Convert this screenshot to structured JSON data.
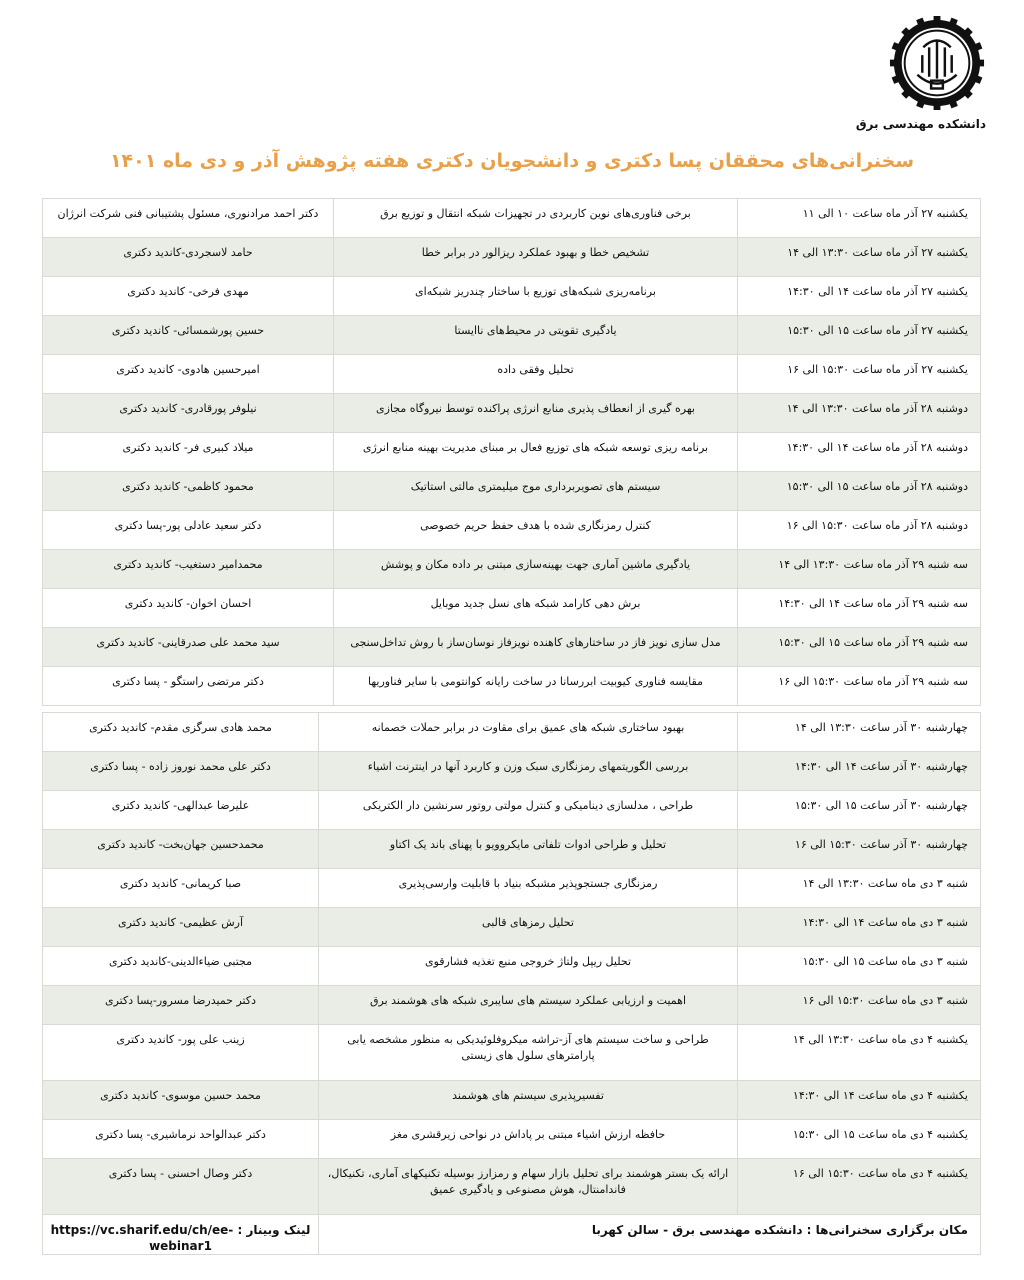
{
  "header": {
    "logo_icon": "sharif-university-gear-logo",
    "department": "دانشکده مهندسی برق",
    "title": "سخنرانی‌های محققان پسا دکتری و دانشجویان دکتری هفته پژوهش آذر و دی ماه ۱۴۰۱",
    "title_color": "#e8a04a"
  },
  "table1": [
    {
      "time": "یکشنبه ۲۷ آذر ماه ساعت ۱۰ الی ۱۱",
      "topic": "برخی فناوری‌های نوین کاربردی در تجهیزات شبکه انتقال و توزیع برق",
      "speaker": "دکتر احمد مرادنوری، مسئول پشتیبانی فنی شرکت انرژان"
    },
    {
      "time": "یکشنبه ۲۷ آذر ماه ساعت ۱۳:۳۰ الی ۱۴",
      "topic": "تشخیص خطا و بهبود عملکرد ریزالور در برابر خطا",
      "speaker": "حامد لاسجردی-کاندید دکتری"
    },
    {
      "time": "یکشنبه ۲۷ آذر ماه ساعت ۱۴ الی ۱۴:۳۰",
      "topic": "برنامه‌ریزی شبکه‌های توزیع با ساختار چندریز شبکه‌ای",
      "speaker": "مهدی فرخی- کاندید دکتری"
    },
    {
      "time": "یکشنبه ۲۷ آذر ماه ساعت ۱۵ الی ۱۵:۳۰",
      "topic": "یادگیری تقویتی در محیط‌های ناایستا",
      "speaker": "حسین پورشمسائی- کاندید دکتری"
    },
    {
      "time": "یکشنبه ۲۷ آذر ماه ساعت ۱۵:۳۰ الی ۱۶",
      "topic": "تحلیل وفقی داده",
      "speaker": "امیرحسین هادوی- کاندید دکتری"
    },
    {
      "time": "دوشنبه ۲۸ آذر ماه ساعت ۱۳:۳۰ الی ۱۴",
      "topic": "بهره گیری از انعطاف پذیری منابع انرژی پراکنده توسط نیروگاه مجازی",
      "speaker": "نیلوفر پورقادری- کاندید دکتری"
    },
    {
      "time": "دوشنبه ۲۸ آذر ماه ساعت ۱۴ الی ۱۴:۳۰",
      "topic": "برنامه ریزی توسعه شبکه های توزیع فعال بر مبنای مدیریت بهینه منابع انرژی",
      "speaker": "میلاد کبیری فر- کاندید دکتری"
    },
    {
      "time": "دوشنبه ۲۸ آذر ماه ساعت ۱۵ الی ۱۵:۳۰",
      "topic": "سیستم های تصویربرداری موج میلیمتری مالتی استاتیک",
      "speaker": "محمود کاظمی- کاندید دکتری"
    },
    {
      "time": "دوشنبه ۲۸ آذر ماه ساعت ۱۵:۳۰ الی ۱۶",
      "topic": "کنترل رمزنگاری شده با هدف حفظ حریم خصوصی",
      "speaker": "دکتر سعید عادلی پور-پسا دکتری"
    },
    {
      "time": "سه شنبه ۲۹ آذر ماه ساعت ۱۳:۳۰ الی ۱۴",
      "topic": "یادگیری ماشین آماری جهت بهینه‌سازی مبتنی بر داده مکان و پوشش",
      "speaker": "محمدامیر دستغیب- کاندید دکتری"
    },
    {
      "time": "سه شنبه ۲۹ آذر ماه ساعت ۱۴ الی ۱۴:۳۰",
      "topic": "برش دهی کارامد شبکه های نسل جدید موبایل",
      "speaker": "احسان اخوان- کاندید دکتری"
    },
    {
      "time": "سه شنبه ۲۹ آذر ماه ساعت ۱۵ الی ۱۵:۳۰",
      "topic": "مدل سازی نویز فاز در ساختارهای کاهنده نویزفاز نوسان‌ساز با روش تداخل‌سنجی",
      "speaker": "سید محمد علی صدرقاینی- کاندید دکتری"
    },
    {
      "time": "سه شنبه ۲۹ آذر ماه ساعت ۱۵:۳۰ الی ۱۶",
      "topic": "مقایسه فناوری کیوبیت ابررسانا در ساخت رایانه کوانتومی با سایر فناوریها",
      "speaker": "دکتر مرتضی راستگو - پسا دکتری"
    }
  ],
  "table2": [
    {
      "time": "چهارشنبه ۳۰ آذر ساعت ۱۳:۳۰ الی ۱۴",
      "topic": "بهبود ساختاری شبکه های عمیق برای مقاوت در برابر حملات خصمانه",
      "speaker": "محمد هادی سرگزی مقدم- کاندید دکتری"
    },
    {
      "time": "چهارشنبه ۳۰ آذر ساعت ۱۴ الی ۱۴:۳۰",
      "topic": "بررسی الگوریتمهای رمزنگاری سبک وزن و کاربرد آنها در اینترنت اشیاء",
      "speaker": "دکتر علی محمد نوروز زاده - پسا دکتری"
    },
    {
      "time": "چهارشنبه ۳۰ آذر ساعت ۱۵ الی ۱۵:۳۰",
      "topic": "طراحی ، مدلسازی دینامیکی و کنترل مولتی روتور سرنشین دار الکتریکی",
      "speaker": "علیرضا عبدالهی- کاندید دکتری"
    },
    {
      "time": "چهارشنبه ۳۰ آذر ساعت ۱۵:۳۰ الی ۱۶",
      "topic": "تحلیل و طراحی ادوات تلفاتی مایکروویو با پهنای باند یک اکتاو",
      "speaker": "محمدحسین جهان‌بخت- کاندید دکتری"
    },
    {
      "time": "شنبه ۳ دی ماه ساعت ۱۳:۳۰ الی ۱۴",
      "topic": "رمزنگاری جستجوپذیر مشبکه بنیاد با قابلیت وارسی‌پذیری",
      "speaker": "صبا کریمانی- کاندید دکتری"
    },
    {
      "time": "شنبه ۳ دی ماه ساعت ۱۴ الی ۱۴:۳۰",
      "topic": "تحلیل رمزهای قالبی",
      "speaker": "آرش عظیمی- کاندید دکتری"
    },
    {
      "time": "شنبه ۳ دی ماه ساعت ۱۵ الی ۱۵:۳۰",
      "topic": "تحلیل ریپل ولتاژ خروجی منبع تغذیه فشارقوی",
      "speaker": "مجتبی ضیاءالدینی-کاندید دکتری"
    },
    {
      "time": "شنبه ۳ دی ماه ساعت ۱۵:۳۰ الی ۱۶",
      "topic": "اهمیت و ارزیابی عملکرد سیستم های سایبری شبکه های هوشمند برق",
      "speaker": "دکتر حمیدرضا مسرور-پسا دکتری"
    },
    {
      "time": "یکشنبه ۴ دی ماه ساعت ۱۳:۳۰ الی ۱۴",
      "topic": "طراحی و ساخت سیستم های آز-تراشه میکروفلوئیدیکی به منظور مشخصه یابی پارامترهای سلول های زیستی",
      "speaker": "زینب علی پور- کاندید دکتری",
      "tall": true
    },
    {
      "time": "یکشنبه ۴ دی ماه ساعت ۱۴ الی ۱۴:۳۰",
      "topic": "تفسیرپذیری سیستم های هوشمند",
      "speaker": "محمد حسین موسوی- کاندید دکتری"
    },
    {
      "time": "یکشنبه ۴ دی ماه ساعت ۱۵ الی ۱۵:۳۰",
      "topic": "حافظه ارزش اشیاء مبتنی بر پاداش در نواحی زیرقشری مغز",
      "speaker": "دکتر عبدالواحد نرماشیری- پسا دکتری"
    },
    {
      "time": "یکشنبه ۴ دی ماه ساعت ۱۵:۳۰ الی ۱۶",
      "topic": "ارائه یک بستر هوشمند برای تحلیل بازار سهام و رمزارز بوسیله تکنیکهای آماری، تکنیکال، فاندامنتال، هوش مصنوعی و یادگیری عمیق",
      "speaker": "دکتر وصال احسنی - پسا دکتری",
      "tall": true
    }
  ],
  "footer": {
    "venue": "مکان برگزاری سخنرانی‌ها : دانشکده مهندسی برق - سالن کهربا",
    "webinar_label": "لینک وبینار :",
    "webinar_url": "https://vc.sharif.edu/ch/ee-webinar1"
  }
}
